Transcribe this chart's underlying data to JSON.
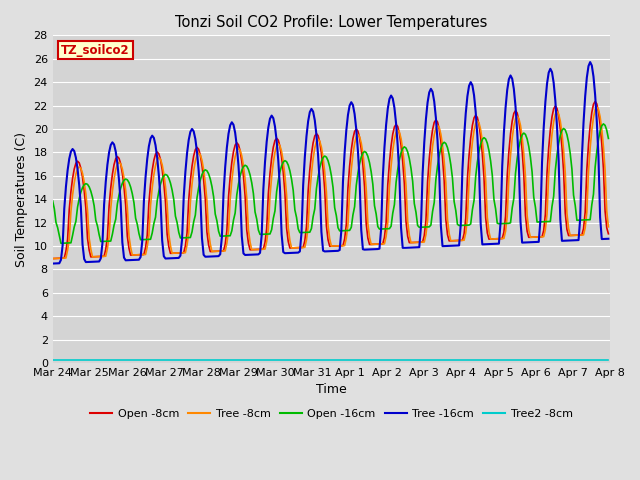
{
  "title": "Tonzi Soil CO2 Profile: Lower Temperatures",
  "xlabel": "Time",
  "ylabel": "Soil Temperatures (C)",
  "ylim": [
    0,
    28
  ],
  "yticks": [
    0,
    2,
    4,
    6,
    8,
    10,
    12,
    14,
    16,
    18,
    20,
    22,
    24,
    26,
    28
  ],
  "x_labels": [
    "Mar 24",
    "Mar 25",
    "Mar 26",
    "Mar 27",
    "Mar 28",
    "Mar 29",
    "Mar 30",
    "Mar 31",
    "Apr 1",
    "Apr 2",
    "Apr 3",
    "Apr 4",
    "Apr 5",
    "Apr 6",
    "Apr 7",
    "Apr 8"
  ],
  "background_color": "#e0e0e0",
  "plot_bg_color": "#d4d4d4",
  "grid_color": "#ffffff",
  "legend_label": "TZ_soilco2",
  "legend_box_color": "#ffffcc",
  "legend_box_border": "#cc0000",
  "series": [
    {
      "label": "Open -8cm",
      "color": "#dd0000",
      "linewidth": 1.2
    },
    {
      "label": "Tree -8cm",
      "color": "#ff8800",
      "linewidth": 1.2
    },
    {
      "label": "Open -16cm",
      "color": "#00bb00",
      "linewidth": 1.2
    },
    {
      "label": "Tree -16cm",
      "color": "#0000cc",
      "linewidth": 1.5
    },
    {
      "label": "Tree2 -8cm",
      "color": "#00cccc",
      "linewidth": 1.2
    }
  ]
}
